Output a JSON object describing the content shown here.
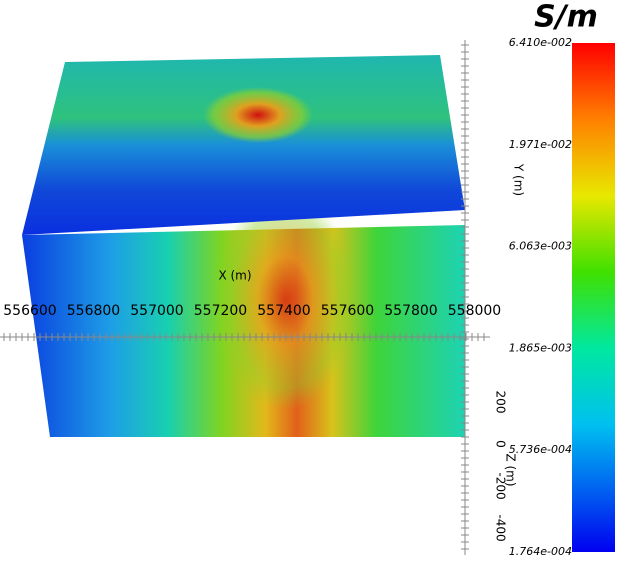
{
  "colorbar": {
    "title": "S/m",
    "labels": [
      "6.410e-002",
      "1.971e-002",
      "6.063e-003",
      "1.865e-003",
      "5.736e-004",
      "1.764e-004"
    ]
  },
  "x_axis": {
    "title": "X (m)",
    "ticks": [
      "556600",
      "556800",
      "557000",
      "557200",
      "557400",
      "557600",
      "557800",
      "558000"
    ]
  },
  "y_axis": {
    "title": "Y (m)"
  },
  "z_axis": {
    "title": "Z (m)",
    "ticks": [
      "200",
      "0",
      "-200",
      "-400"
    ]
  }
}
